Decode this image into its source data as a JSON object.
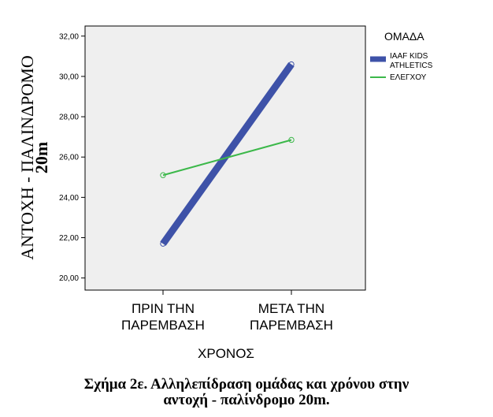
{
  "chart_data": {
    "type": "line",
    "categories": [
      "ΠΡΙΝ ΤΗΝ ΠΑΡΕΜΒΑΣΗ",
      "ΜΕΤΑ ΤΗΝ ΠΑΡΕΜΒΑΣΗ"
    ],
    "category_lines": [
      [
        "ΠΡΙΝ ΤΗΝ",
        "ΠΑΡΕΜΒΑΣΗ"
      ],
      [
        "ΜΕΤΑ ΤΗΝ",
        "ΠΑΡΕΜΒΑΣΗ"
      ]
    ],
    "series": [
      {
        "name_lines": [
          "IAAF KIDS",
          "ATHLETICS"
        ],
        "values": [
          21.7,
          30.6
        ],
        "color": "#3e52a8",
        "style": "thick"
      },
      {
        "name_lines": [
          "ΕΛΕΓΧΟΥ"
        ],
        "values": [
          25.1,
          26.85
        ],
        "color": "#3cb84a",
        "style": "thin"
      }
    ],
    "xlabel": "ΧΡΟΝΟΣ",
    "ylabel_lines": [
      "ΑΝΤΟΧΗ - ΠΑΛΙΝΔΡΟΜΟ",
      "20m"
    ],
    "ylim": [
      19.4,
      32.5
    ],
    "yticks": [
      "20,00",
      "22,00",
      "24,00",
      "26,00",
      "28,00",
      "30,00",
      "32,00"
    ],
    "legend_title": "ΟΜΑΔΑ",
    "legend_position": "right",
    "plot_background": "#efefef"
  },
  "caption": {
    "line1": "Σχήμα 2ε. Αλληλεπίδραση ομάδας και χρόνου στην",
    "line2": "αντοχή - παλίνδρομο 20m."
  }
}
